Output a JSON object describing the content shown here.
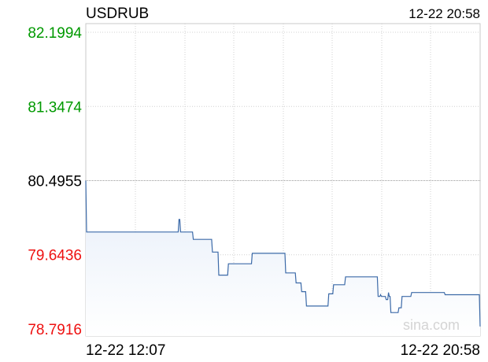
{
  "header": {
    "symbol": "USDRUB",
    "timestamp": "12-22 20:58"
  },
  "watermark": "sina.com",
  "colors": {
    "up": "#009900",
    "down": "#ee1111",
    "neutral": "#000000",
    "line": "#3c6aa8",
    "area_top": "#e6eef9",
    "area_bottom": "#ffffff",
    "grid": "#d0d0d0",
    "prev_close_line": "#9a9a9a",
    "frame": "#c9c9c9"
  },
  "chart_data": {
    "type": "line",
    "title": "USDRUB",
    "prev_close": 80.4955,
    "ylim": [
      78.7916,
      82.1994
    ],
    "y_ticks": [
      {
        "label": "82.1994",
        "value": 82.1994,
        "tone": "up"
      },
      {
        "label": "81.3474",
        "value": 81.3474,
        "tone": "up"
      },
      {
        "label": "80.4955",
        "value": 80.4955,
        "tone": "neutral"
      },
      {
        "label": "79.6436",
        "value": 79.6436,
        "tone": "down"
      },
      {
        "label": "78.7916",
        "value": 78.7916,
        "tone": "down"
      }
    ],
    "x_tick_labels": [
      "12-22 12:07",
      "12-22 20:58"
    ],
    "grid": true,
    "series": [
      {
        "points": [
          [
            0,
            80.4955
          ],
          [
            1,
            79.905
          ],
          [
            116,
            79.905
          ],
          [
            117,
            80.05
          ],
          [
            118,
            80.05
          ],
          [
            119,
            79.905
          ],
          [
            134,
            79.905
          ],
          [
            135,
            79.82
          ],
          [
            158,
            79.82
          ],
          [
            159,
            79.675
          ],
          [
            166,
            79.675
          ],
          [
            167,
            79.41
          ],
          [
            178,
            79.41
          ],
          [
            179,
            79.54
          ],
          [
            208,
            79.54
          ],
          [
            209,
            79.66
          ],
          [
            250,
            79.66
          ],
          [
            251,
            79.435
          ],
          [
            263,
            79.435
          ],
          [
            264,
            79.32
          ],
          [
            270,
            79.32
          ],
          [
            271,
            79.22
          ],
          [
            276,
            79.22
          ],
          [
            277,
            79.055
          ],
          [
            304,
            79.055
          ],
          [
            305,
            79.195
          ],
          [
            310,
            79.195
          ],
          [
            311,
            79.3
          ],
          [
            325,
            79.3
          ],
          [
            326,
            79.39
          ],
          [
            366,
            79.39
          ],
          [
            367,
            79.165
          ],
          [
            369,
            79.165
          ],
          [
            370,
            79.185
          ],
          [
            371,
            79.165
          ],
          [
            376,
            79.165
          ],
          [
            377,
            79.13
          ],
          [
            379,
            79.13
          ],
          [
            380,
            79.21
          ],
          [
            381,
            79.165
          ],
          [
            382,
            79.165
          ],
          [
            383,
            78.98
          ],
          [
            392,
            78.98
          ],
          [
            393,
            79.035
          ],
          [
            396,
            79.035
          ],
          [
            397,
            79.165
          ],
          [
            408,
            79.165
          ],
          [
            409,
            79.21
          ],
          [
            450,
            79.21
          ],
          [
            451,
            79.185
          ],
          [
            494,
            79.185
          ],
          [
            495,
            78.82
          ]
        ]
      }
    ],
    "x_range": [
      0,
      495
    ]
  }
}
